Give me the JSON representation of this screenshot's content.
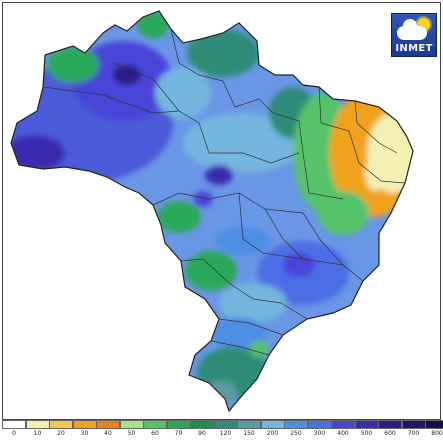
{
  "logo": {
    "text": "INMET",
    "icon": "weather-cloud-sun-icon"
  },
  "legend": {
    "classes": [
      {
        "label": "0",
        "color": "#ffffff"
      },
      {
        "label": "10",
        "color": "#f3f0b2"
      },
      {
        "label": "20",
        "color": "#f4c656"
      },
      {
        "label": "30",
        "color": "#f0a21d"
      },
      {
        "label": "40",
        "color": "#e8801c"
      },
      {
        "label": "50",
        "color": "#a9e08b"
      },
      {
        "label": "60",
        "color": "#55c36b"
      },
      {
        "label": "70",
        "color": "#2aa85a"
      },
      {
        "label": "90",
        "color": "#16944b"
      },
      {
        "label": "120",
        "color": "#2d8c78"
      },
      {
        "label": "150",
        "color": "#5a9da0"
      },
      {
        "label": "200",
        "color": "#74b6df"
      },
      {
        "label": "250",
        "color": "#4e8ee3"
      },
      {
        "label": "300",
        "color": "#4b6ee6"
      },
      {
        "label": "400",
        "color": "#4a45d9"
      },
      {
        "label": "500",
        "color": "#3b2bb0"
      },
      {
        "label": "600",
        "color": "#2a1f86"
      },
      {
        "label": "700",
        "color": "#1e1664"
      },
      {
        "label": "800",
        "color": "#140f47"
      }
    ]
  }
}
